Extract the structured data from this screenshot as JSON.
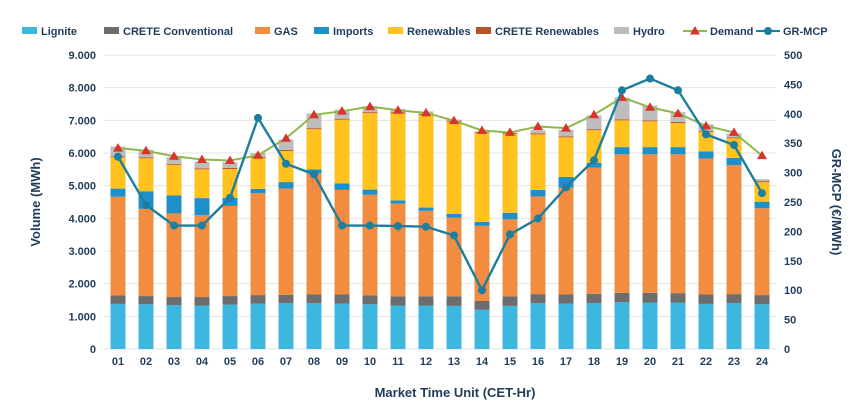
{
  "chart_data": {
    "type": "bar",
    "stacked": true,
    "xlabel": "Market Time Unit (CET-Hr)",
    "ylabel": "Volume (MWh)",
    "y2label": "GR-MCP (€/MWh)",
    "categories": [
      "01",
      "02",
      "03",
      "04",
      "05",
      "06",
      "07",
      "08",
      "09",
      "10",
      "11",
      "12",
      "13",
      "14",
      "15",
      "16",
      "17",
      "18",
      "19",
      "20",
      "21",
      "22",
      "23",
      "24"
    ],
    "ylim": [
      0,
      9000
    ],
    "y2lim": [
      0,
      500
    ],
    "yticks": [
      "0",
      "1.000",
      "2.000",
      "3.000",
      "4.000",
      "5.000",
      "6.000",
      "7.000",
      "8.000",
      "9.000"
    ],
    "y2ticks": [
      "0",
      "50",
      "100",
      "150",
      "200",
      "250",
      "300",
      "350",
      "400",
      "450",
      "500"
    ],
    "series": [
      {
        "name": "Lignite",
        "color": "#3cb8e0",
        "values": [
          1380,
          1370,
          1340,
          1330,
          1360,
          1390,
          1400,
          1400,
          1390,
          1370,
          1330,
          1330,
          1320,
          1200,
          1320,
          1400,
          1390,
          1400,
          1430,
          1420,
          1420,
          1380,
          1400,
          1370
        ]
      },
      {
        "name": "CRETE Conventional",
        "color": "#6d6d6d",
        "values": [
          260,
          250,
          250,
          260,
          260,
          260,
          260,
          270,
          280,
          270,
          280,
          280,
          290,
          270,
          290,
          280,
          280,
          290,
          290,
          300,
          290,
          290,
          280,
          280
        ]
      },
      {
        "name": "GAS",
        "color": "#f28c40",
        "values": [
          3020,
          2670,
          2560,
          2510,
          2760,
          3120,
          3250,
          3700,
          3200,
          3080,
          2840,
          2620,
          2410,
          2300,
          2360,
          2990,
          3270,
          3860,
          4240,
          4240,
          4250,
          4160,
          3950,
          2660
        ]
      },
      {
        "name": "Imports",
        "color": "#1f8fc7",
        "values": [
          250,
          540,
          550,
          520,
          250,
          130,
          200,
          130,
          200,
          160,
          100,
          100,
          120,
          120,
          200,
          200,
          330,
          150,
          220,
          220,
          220,
          220,
          220,
          200
        ]
      },
      {
        "name": "Renewables",
        "color": "#ffc21f",
        "values": [
          960,
          1010,
          940,
          880,
          880,
          950,
          950,
          1230,
          1950,
          2340,
          2660,
          2840,
          2820,
          2730,
          2420,
          1700,
          1210,
          1000,
          820,
          790,
          740,
          600,
          600,
          600
        ]
      },
      {
        "name": "CRETE Renewables",
        "color": "#b5532a",
        "values": [
          30,
          30,
          30,
          30,
          30,
          30,
          30,
          30,
          30,
          30,
          30,
          30,
          30,
          30,
          30,
          30,
          30,
          30,
          30,
          30,
          30,
          30,
          30,
          30
        ]
      },
      {
        "name": "Hydro",
        "color": "#bdbdbd",
        "values": [
          300,
          230,
          200,
          200,
          180,
          120,
          320,
          450,
          280,
          180,
          110,
          70,
          30,
          0,
          0,
          100,
          200,
          420,
          670,
          450,
          300,
          200,
          120,
          60
        ]
      }
    ],
    "lines": [
      {
        "name": "Demand",
        "color": "#8fb84a",
        "marker_color": "#d9342b",
        "axis": "left",
        "values": [
          6150,
          6070,
          5900,
          5800,
          5770,
          5930,
          6450,
          7170,
          7280,
          7420,
          7310,
          7230,
          6990,
          6690,
          6630,
          6810,
          6760,
          7170,
          7700,
          7400,
          7210,
          6830,
          6630,
          5920
        ]
      },
      {
        "name": "GR-MCP",
        "color": "#1c7f9e",
        "marker_color": "#1c7f9e",
        "axis": "right",
        "values": [
          327,
          245,
          210,
          210,
          257,
          393,
          315,
          297,
          210,
          210,
          209,
          208,
          193,
          100,
          195,
          222,
          275,
          321,
          440,
          460,
          440,
          365,
          347,
          265
        ]
      }
    ]
  }
}
